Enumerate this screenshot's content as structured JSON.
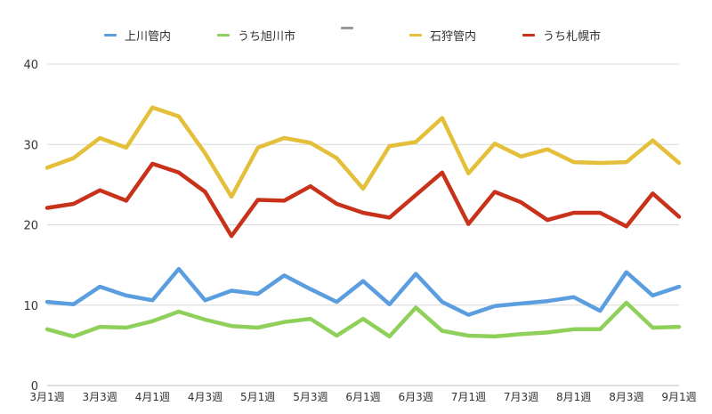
{
  "chart_data": {
    "type": "line",
    "title": "",
    "xlabel": "",
    "ylabel": "",
    "ylim": [
      0,
      40
    ],
    "yticks": [
      0,
      10,
      20,
      30,
      40
    ],
    "grid": true,
    "legend_position": "top",
    "categories": [
      "3月1週",
      "3月2週",
      "3月3週",
      "3月4週",
      "4月1週",
      "4月2週",
      "4月3週",
      "4月4週",
      "5月1週",
      "5月2週",
      "5月3週",
      "5月4週",
      "6月1週",
      "6月2週",
      "6月3週",
      "6月4週",
      "7月1週",
      "7月2週",
      "7月3週",
      "7月4週",
      "8月1週",
      "8月2週",
      "8月3週",
      "8月4週",
      "9月1週"
    ],
    "visible_x_labels": [
      "3月1週",
      "3月3週",
      "4月1週",
      "4月3週",
      "5月1週",
      "5月3週",
      "6月1週",
      "6月3週",
      "7月1週",
      "7月3週",
      "8月1週",
      "8月3週",
      "9月1週"
    ],
    "legend": [
      {
        "name": "上川管内",
        "color": "#5b9ee0"
      },
      {
        "name": "うち旭川市",
        "color": "#8fd05a"
      },
      {
        "name": "",
        "color": "#999999"
      },
      {
        "name": "石狩管内",
        "color": "#e3bf3a"
      },
      {
        "name": "うち札幌市",
        "color": "#c8321b"
      }
    ],
    "series": [
      {
        "name": "上川管内",
        "color": "#5b9ee0",
        "values": [
          10.4,
          10.1,
          12.3,
          11.2,
          10.6,
          14.5,
          10.6,
          11.8,
          11.4,
          13.7,
          12.0,
          10.4,
          13.0,
          10.1,
          13.9,
          10.4,
          8.8,
          9.9,
          10.2,
          10.5,
          11.0,
          9.3,
          14.1,
          11.2,
          12.3
        ]
      },
      {
        "name": "うち旭川市",
        "color": "#8fd05a",
        "values": [
          7.0,
          6.1,
          7.3,
          7.2,
          8.0,
          9.2,
          8.2,
          7.4,
          7.2,
          7.9,
          8.3,
          6.2,
          8.3,
          6.1,
          9.7,
          6.8,
          6.2,
          6.1,
          6.4,
          6.6,
          7.0,
          7.0,
          10.3,
          7.2,
          7.3
        ]
      },
      {
        "name": "石狩管内",
        "color": "#e3bf3a",
        "values": [
          27.1,
          28.3,
          30.8,
          29.6,
          34.6,
          33.5,
          28.9,
          23.5,
          29.6,
          30.8,
          30.2,
          28.3,
          24.5,
          29.8,
          30.3,
          33.3,
          26.4,
          30.1,
          28.5,
          29.4,
          27.8,
          27.7,
          27.8,
          30.5,
          27.7
        ]
      },
      {
        "name": "うち札幌市",
        "color": "#c8321b",
        "values": [
          22.1,
          22.6,
          24.3,
          23.0,
          27.6,
          26.5,
          24.1,
          18.6,
          23.1,
          23.0,
          24.8,
          22.6,
          21.5,
          20.9,
          23.7,
          26.5,
          20.1,
          24.1,
          22.8,
          20.6,
          21.5,
          21.5,
          19.8,
          23.9,
          21.0
        ]
      }
    ]
  }
}
